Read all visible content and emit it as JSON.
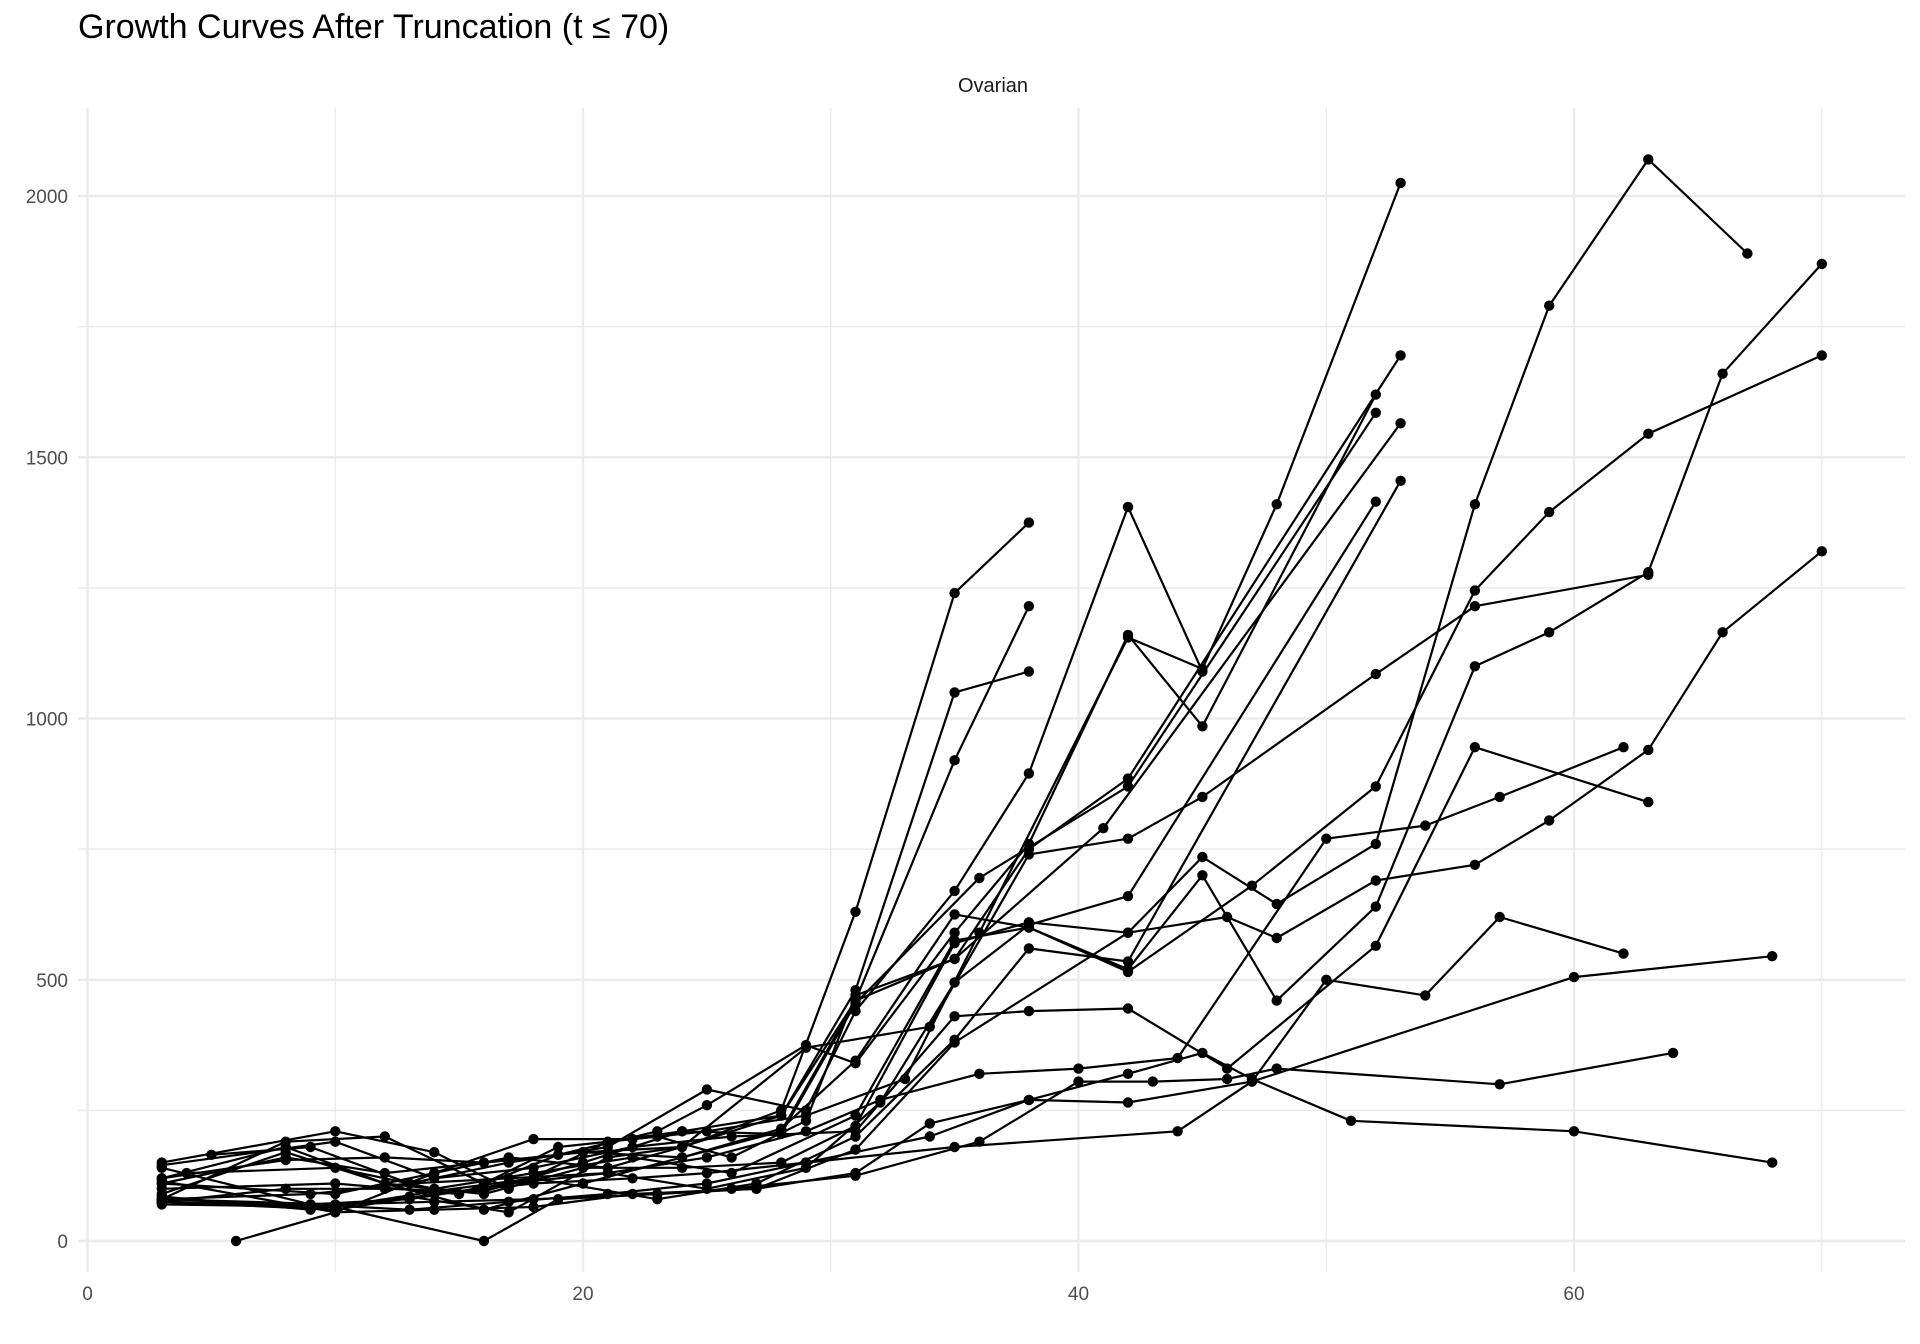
{
  "chart_data": {
    "type": "line",
    "title": "Growth Curves After Truncation (t ≤ 70)",
    "facet_label": "Ovarian",
    "xlabel": "",
    "ylabel": "",
    "xlim": [
      0,
      73
    ],
    "ylim": [
      -60,
      2175
    ],
    "x_ticks": [
      0,
      20,
      40,
      60
    ],
    "x_tick_labels": [
      "0",
      "20",
      "40",
      "60"
    ],
    "y_ticks": [
      0,
      500,
      1000,
      1500,
      2000
    ],
    "y_tick_labels": [
      "0",
      "500",
      "1000",
      "1500",
      "2000"
    ],
    "grid": true,
    "legend": "none",
    "line_color": "#000000",
    "series": [
      {
        "x": [
          3,
          10,
          14,
          17,
          21,
          24,
          28,
          31,
          35,
          38
        ],
        "y": [
          110,
          90,
          130,
          160,
          140,
          180,
          250,
          630,
          1240,
          1375
        ]
      },
      {
        "x": [
          3,
          10,
          14,
          17,
          21,
          24,
          28,
          31,
          35,
          38
        ],
        "y": [
          150,
          210,
          170,
          100,
          190,
          210,
          240,
          480,
          1050,
          1090
        ]
      },
      {
        "x": [
          3,
          8,
          12,
          16,
          20,
          24,
          28,
          31,
          35,
          38
        ],
        "y": [
          120,
          180,
          110,
          60,
          110,
          160,
          210,
          460,
          920,
          1215
        ]
      },
      {
        "x": [
          5,
          9,
          13,
          17,
          21,
          25,
          29,
          31,
          35,
          38,
          42,
          45
        ],
        "y": [
          165,
          180,
          110,
          150,
          180,
          290,
          250,
          440,
          670,
          895,
          1405,
          1090
        ]
      },
      {
        "x": [
          6,
          10,
          14,
          18,
          22,
          25,
          29,
          33,
          36,
          42,
          45,
          48,
          53
        ],
        "y": [
          0,
          55,
          130,
          195,
          195,
          210,
          240,
          310,
          590,
          1155,
          1095,
          1410,
          2025
        ]
      },
      {
        "x": [
          3,
          10,
          15,
          19,
          23,
          25,
          29,
          31,
          35,
          38,
          42,
          45,
          52
        ],
        "y": [
          100,
          110,
          90,
          165,
          210,
          260,
          375,
          340,
          590,
          760,
          1160,
          985,
          1620
        ]
      },
      {
        "x": [
          3,
          8,
          12,
          16,
          19,
          23,
          26,
          29,
          31,
          35,
          38,
          42,
          53
        ],
        "y": [
          80,
          190,
          200,
          110,
          180,
          200,
          160,
          230,
          470,
          540,
          750,
          885,
          1695
        ]
      },
      {
        "x": [
          3,
          8,
          12,
          16,
          20,
          24,
          28,
          31,
          36,
          42,
          52
        ],
        "y": [
          75,
          100,
          100,
          95,
          150,
          210,
          205,
          455,
          695,
          870,
          1585
        ]
      },
      {
        "x": [
          3,
          9,
          13,
          17,
          21,
          24,
          28,
          31,
          35,
          41,
          53
        ],
        "y": [
          85,
          60,
          85,
          55,
          160,
          180,
          240,
          460,
          540,
          790,
          1565
        ]
      },
      {
        "x": [
          3,
          9,
          13,
          17,
          21,
          25,
          29,
          32,
          35,
          38,
          42,
          52
        ],
        "y": [
          140,
          70,
          80,
          110,
          130,
          100,
          140,
          265,
          495,
          605,
          660,
          1415
        ]
      },
      {
        "x": [
          3,
          10,
          14,
          18,
          23,
          27,
          31,
          35,
          38,
          42,
          53
        ],
        "y": [
          70,
          65,
          95,
          120,
          80,
          110,
          200,
          385,
          560,
          535,
          1455
        ]
      },
      {
        "x": [
          3,
          10,
          14,
          18,
          22,
          27,
          31,
          35,
          42,
          45,
          48,
          52,
          56,
          59,
          63,
          67
        ],
        "y": [
          115,
          55,
          60,
          65,
          90,
          100,
          175,
          380,
          590,
          735,
          645,
          760,
          1410,
          1790,
          2070,
          1890
        ]
      },
      {
        "x": [
          4,
          10,
          14,
          18,
          22,
          26,
          31,
          35,
          38,
          42,
          45,
          48,
          52,
          56,
          59,
          63,
          66,
          70
        ],
        "y": [
          130,
          140,
          100,
          130,
          160,
          130,
          240,
          575,
          600,
          520,
          700,
          460,
          640,
          1100,
          1165,
          1280,
          1660,
          1870
        ]
      },
      {
        "x": [
          3,
          8,
          12,
          16,
          20,
          24,
          28,
          31,
          35,
          38,
          42,
          47,
          52,
          56,
          59,
          63,
          70
        ],
        "y": [
          110,
          160,
          130,
          150,
          170,
          160,
          215,
          345,
          625,
          600,
          515,
          680,
          870,
          1245,
          1395,
          1545,
          1695
        ]
      },
      {
        "x": [
          3,
          8,
          12,
          16,
          20,
          24,
          29,
          34,
          38,
          42,
          45,
          52,
          56,
          63
        ],
        "y": [
          120,
          155,
          160,
          150,
          170,
          180,
          370,
          410,
          740,
          770,
          850,
          1085,
          1215,
          1275
        ]
      },
      {
        "x": [
          3,
          8,
          12,
          16,
          20,
          24,
          28,
          31,
          35,
          38,
          42,
          46,
          48,
          52,
          56,
          59,
          63,
          66,
          70
        ],
        "y": [
          90,
          170,
          110,
          90,
          140,
          140,
          150,
          220,
          570,
          610,
          590,
          620,
          580,
          690,
          720,
          805,
          940,
          1165,
          1320
        ]
      },
      {
        "x": [
          3,
          9,
          13,
          17,
          21,
          25,
          29,
          32,
          36,
          40,
          44,
          50,
          54,
          57,
          62
        ],
        "y": [
          80,
          90,
          110,
          120,
          130,
          160,
          210,
          270,
          320,
          330,
          350,
          770,
          795,
          850,
          945
        ]
      },
      {
        "x": [
          3,
          10,
          14,
          18,
          22,
          26,
          31,
          35,
          38,
          42,
          46,
          52,
          56,
          63
        ],
        "y": [
          145,
          190,
          120,
          140,
          180,
          200,
          210,
          430,
          440,
          445,
          330,
          565,
          945,
          840
        ]
      },
      {
        "x": [
          3,
          10,
          14,
          18,
          23,
          27,
          31,
          34,
          38,
          42,
          47,
          50,
          54,
          57,
          62
        ],
        "y": [
          80,
          70,
          75,
          80,
          90,
          100,
          130,
          225,
          270,
          265,
          305,
          500,
          470,
          620,
          550
        ]
      },
      {
        "x": [
          3,
          10,
          14,
          18,
          22,
          25,
          29,
          34,
          38,
          42,
          45,
          47,
          51,
          60,
          68
        ],
        "y": [
          75,
          60,
          90,
          110,
          120,
          130,
          150,
          200,
          270,
          320,
          360,
          310,
          230,
          210,
          150
        ]
      },
      {
        "x": [
          3,
          10,
          16,
          19,
          23,
          26,
          31,
          36,
          40,
          43,
          46,
          48,
          57,
          64
        ],
        "y": [
          75,
          65,
          0,
          80,
          90,
          100,
          125,
          190,
          305,
          305,
          310,
          330,
          300,
          360
        ]
      },
      {
        "x": [
          3,
          9,
          13,
          17,
          21,
          25,
          29,
          35,
          44,
          47,
          60,
          68
        ],
        "y": [
          75,
          70,
          60,
          75,
          90,
          110,
          150,
          180,
          210,
          305,
          505,
          545
        ]
      }
    ]
  }
}
